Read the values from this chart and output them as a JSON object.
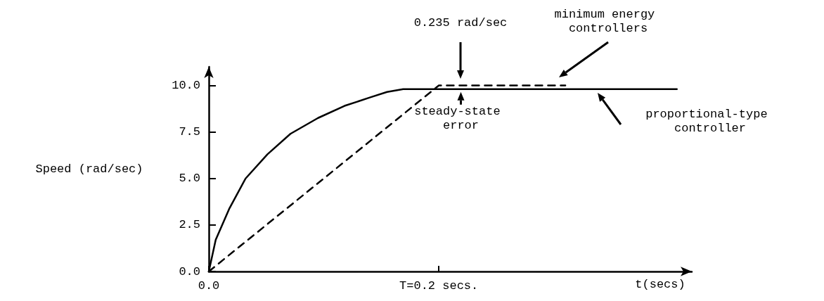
{
  "chart_data": {
    "type": "line",
    "ylabel": "Speed (rad/sec)",
    "xlabel": "t(secs)",
    "xlim": [
      0,
      0.42
    ],
    "ylim": [
      0,
      11
    ],
    "xticks": [
      {
        "value": 0,
        "label": "0.0"
      },
      {
        "value": 0.2,
        "label": "T=0.2 secs."
      }
    ],
    "yticks": [
      {
        "value": 0,
        "label": "0.0"
      },
      {
        "value": 2.5,
        "label": "2.5"
      },
      {
        "value": 5,
        "label": "5.0"
      },
      {
        "value": 7.5,
        "label": "7.5"
      },
      {
        "value": 10,
        "label": "10.0"
      }
    ],
    "grid": false,
    "marker": "none",
    "series": [
      {
        "color": "#000000",
        "line_style": "solid",
        "x": [
          0,
          0.006,
          0.018,
          0.032,
          0.051,
          0.071,
          0.095,
          0.118,
          0.14,
          0.155,
          0.169,
          0.407
        ],
        "values": [
          0,
          1.7,
          3.4,
          5.0,
          6.3,
          7.4,
          8.25,
          8.9,
          9.35,
          9.65,
          9.8,
          9.8
        ]
      },
      {
        "color": "#000000",
        "line_style": "dashed",
        "x": [
          0,
          0.2,
          0.31
        ],
        "values": [
          0,
          10,
          10
        ]
      }
    ],
    "annotations": [
      "0.235 rad/sec",
      {
        "text": "steady-state error",
        "x": 0.21,
        "y": 9.8
      },
      "minimum energy controllers",
      "proportional-type controller"
    ]
  }
}
